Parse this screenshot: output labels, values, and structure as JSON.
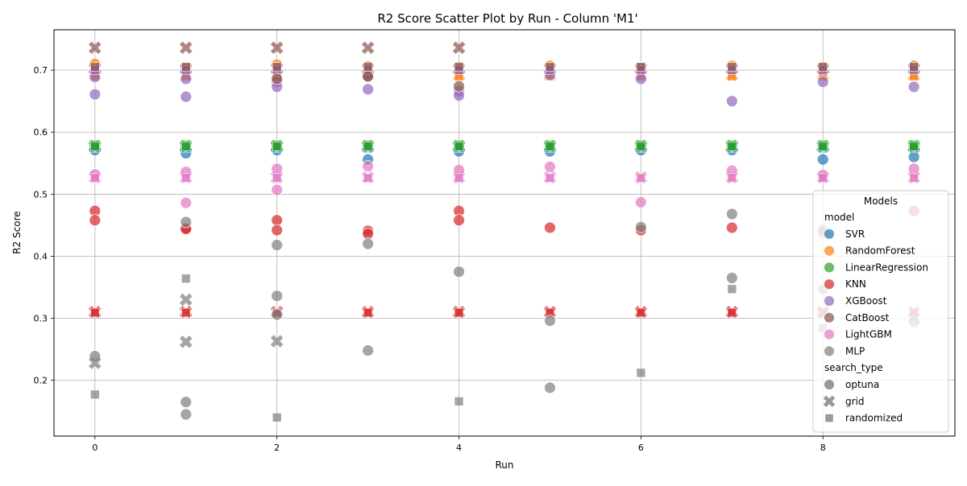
{
  "colors": {
    "SVR": "#1f77b4",
    "RandomForest": "#ff7f0e",
    "LinearRegression": "#2ca02c",
    "KNN": "#d62728",
    "XGBoost": "#9467bd",
    "CatBoost": "#8c564b",
    "LightGBM": "#e377c2",
    "MLP": "#7f7f7f"
  },
  "chart_data": {
    "type": "scatter",
    "title": "R2 Score Scatter Plot by Run - Column 'M1'",
    "xlabel": "Run",
    "ylabel": "R2 Score",
    "xlim": [
      -0.45,
      9.45
    ],
    "ylim": [
      0.11,
      0.765
    ],
    "xticks": [
      0,
      2,
      4,
      6,
      8
    ],
    "yticks": [
      0.2,
      0.3,
      0.4,
      0.5,
      0.6,
      0.7
    ],
    "grid": true,
    "legend": {
      "position": "right",
      "title": "Models",
      "group_titles": {
        "model": "model",
        "search_type": "search_type"
      },
      "models": [
        "SVR",
        "RandomForest",
        "LinearRegression",
        "KNN",
        "XGBoost",
        "CatBoost",
        "LightGBM",
        "MLP"
      ],
      "search_types": [
        "optuna",
        "grid",
        "randomized"
      ]
    },
    "series": [
      {
        "model": "SVR",
        "search": "optuna",
        "points": [
          [
            0,
            0.571
          ],
          [
            1,
            0.566
          ],
          [
            2,
            0.571
          ],
          [
            3,
            0.556
          ],
          [
            4,
            0.569
          ],
          [
            5,
            0.569
          ],
          [
            6,
            0.571
          ],
          [
            7,
            0.571
          ],
          [
            8,
            0.556
          ],
          [
            9,
            0.56
          ]
        ]
      },
      {
        "model": "SVR",
        "search": "grid",
        "points": [
          [
            0,
            0.576
          ],
          [
            1,
            0.576
          ],
          [
            2,
            0.576
          ],
          [
            3,
            0.576
          ],
          [
            4,
            0.576
          ],
          [
            5,
            0.576
          ],
          [
            6,
            0.576
          ],
          [
            7,
            0.576
          ],
          [
            8,
            0.576
          ],
          [
            9,
            0.576
          ]
        ]
      },
      {
        "model": "SVR",
        "search": "randomized",
        "points": [
          [
            0,
            0.574
          ],
          [
            1,
            0.574
          ],
          [
            2,
            0.574
          ],
          [
            3,
            0.574
          ],
          [
            4,
            0.574
          ],
          [
            5,
            0.574
          ],
          [
            6,
            0.574
          ],
          [
            7,
            0.574
          ],
          [
            8,
            0.574
          ],
          [
            9,
            0.574
          ]
        ]
      },
      {
        "model": "RandomForest",
        "search": "optuna",
        "points": [
          [
            0,
            0.71
          ],
          [
            1,
            0.704
          ],
          [
            2,
            0.709
          ],
          [
            3,
            0.706
          ],
          [
            4,
            0.705
          ],
          [
            5,
            0.707
          ],
          [
            6,
            0.704
          ],
          [
            7,
            0.707
          ],
          [
            8,
            0.705
          ],
          [
            9,
            0.707
          ]
        ]
      },
      {
        "model": "RandomForest",
        "search": "grid",
        "points": [
          [
            0,
            0.692
          ],
          [
            1,
            0.692
          ],
          [
            2,
            0.692
          ],
          [
            3,
            0.692
          ],
          [
            4,
            0.692
          ],
          [
            5,
            0.692
          ],
          [
            6,
            0.692
          ],
          [
            7,
            0.692
          ],
          [
            8,
            0.692
          ],
          [
            9,
            0.692
          ]
        ]
      },
      {
        "model": "RandomForest",
        "search": "randomized",
        "points": [
          [
            0,
            0.69
          ],
          [
            1,
            0.69
          ],
          [
            2,
            0.69
          ],
          [
            3,
            0.69
          ],
          [
            4,
            0.69
          ],
          [
            5,
            0.69
          ],
          [
            6,
            0.69
          ],
          [
            7,
            0.69
          ],
          [
            8,
            0.69
          ],
          [
            9,
            0.69
          ]
        ]
      },
      {
        "model": "LinearRegression",
        "search": "optuna",
        "points": [
          [
            0,
            0.578
          ],
          [
            1,
            0.578
          ],
          [
            2,
            0.578
          ],
          [
            3,
            0.578
          ],
          [
            4,
            0.578
          ],
          [
            5,
            0.578
          ],
          [
            6,
            0.578
          ],
          [
            7,
            0.578
          ],
          [
            8,
            0.578
          ],
          [
            9,
            0.578
          ]
        ]
      },
      {
        "model": "LinearRegression",
        "search": "grid",
        "points": [
          [
            0,
            0.578
          ],
          [
            1,
            0.578
          ],
          [
            2,
            0.578
          ],
          [
            3,
            0.578
          ],
          [
            4,
            0.578
          ],
          [
            5,
            0.578
          ],
          [
            6,
            0.578
          ],
          [
            7,
            0.578
          ],
          [
            8,
            0.578
          ],
          [
            9,
            0.578
          ]
        ]
      },
      {
        "model": "LinearRegression",
        "search": "randomized",
        "points": [
          [
            0,
            0.577
          ],
          [
            1,
            0.577
          ],
          [
            2,
            0.577
          ],
          [
            3,
            0.577
          ],
          [
            4,
            0.577
          ],
          [
            5,
            0.577
          ],
          [
            6,
            0.577
          ],
          [
            7,
            0.577
          ],
          [
            8,
            0.577
          ],
          [
            9,
            0.577
          ]
        ]
      },
      {
        "model": "KNN",
        "search": "optuna",
        "points": [
          [
            0,
            0.473
          ],
          [
            0,
            0.458
          ],
          [
            1,
            0.445
          ],
          [
            1,
            0.444
          ],
          [
            2,
            0.458
          ],
          [
            2,
            0.442
          ],
          [
            3,
            0.441
          ],
          [
            3,
            0.436
          ],
          [
            4,
            0.473
          ],
          [
            4,
            0.458
          ],
          [
            5,
            0.446
          ],
          [
            6,
            0.442
          ],
          [
            7,
            0.446
          ],
          [
            8,
            0.438
          ],
          [
            9,
            0.473
          ]
        ]
      },
      {
        "model": "KNN",
        "search": "grid",
        "points": [
          [
            0,
            0.31
          ],
          [
            1,
            0.31
          ],
          [
            2,
            0.31
          ],
          [
            3,
            0.31
          ],
          [
            4,
            0.31
          ],
          [
            5,
            0.31
          ],
          [
            6,
            0.31
          ],
          [
            7,
            0.31
          ],
          [
            8,
            0.31
          ],
          [
            9,
            0.31
          ]
        ]
      },
      {
        "model": "KNN",
        "search": "randomized",
        "points": [
          [
            0,
            0.309
          ],
          [
            1,
            0.309
          ],
          [
            2,
            0.309
          ],
          [
            3,
            0.309
          ],
          [
            4,
            0.309
          ],
          [
            5,
            0.309
          ],
          [
            6,
            0.309
          ],
          [
            7,
            0.309
          ],
          [
            8,
            0.309
          ],
          [
            9,
            0.309
          ]
        ]
      },
      {
        "model": "XGBoost",
        "search": "optuna",
        "points": [
          [
            0,
            0.689
          ],
          [
            0,
            0.661
          ],
          [
            1,
            0.686
          ],
          [
            1,
            0.657
          ],
          [
            2,
            0.681
          ],
          [
            2,
            0.673
          ],
          [
            3,
            0.689
          ],
          [
            3,
            0.669
          ],
          [
            4,
            0.666
          ],
          [
            4,
            0.659
          ],
          [
            5,
            0.692
          ],
          [
            6,
            0.686
          ],
          [
            7,
            0.65
          ],
          [
            8,
            0.681
          ],
          [
            9,
            0.673
          ]
        ]
      },
      {
        "model": "XGBoost",
        "search": "grid",
        "points": [
          [
            0,
            0.702
          ],
          [
            1,
            0.702
          ],
          [
            2,
            0.702
          ],
          [
            3,
            0.702
          ],
          [
            4,
            0.702
          ],
          [
            5,
            0.702
          ],
          [
            6,
            0.702
          ],
          [
            7,
            0.702
          ],
          [
            8,
            0.702
          ],
          [
            9,
            0.702
          ]
        ]
      },
      {
        "model": "XGBoost",
        "search": "randomized",
        "points": [
          [
            0,
            0.7
          ],
          [
            1,
            0.7
          ],
          [
            2,
            0.7
          ],
          [
            3,
            0.7
          ],
          [
            4,
            0.7
          ],
          [
            5,
            0.7
          ],
          [
            6,
            0.7
          ],
          [
            7,
            0.7
          ],
          [
            8,
            0.7
          ],
          [
            9,
            0.7
          ]
        ]
      },
      {
        "model": "CatBoost",
        "search": "optuna",
        "points": [
          [
            2,
            0.686
          ],
          [
            3,
            0.69
          ],
          [
            4,
            0.674
          ]
        ]
      },
      {
        "model": "CatBoost",
        "search": "grid",
        "points": [
          [
            0,
            0.736
          ],
          [
            1,
            0.736
          ],
          [
            2,
            0.736
          ],
          [
            3,
            0.736
          ],
          [
            4,
            0.736
          ]
        ]
      },
      {
        "model": "CatBoost",
        "search": "randomized",
        "points": [
          [
            0,
            0.705
          ],
          [
            1,
            0.705
          ],
          [
            2,
            0.705
          ],
          [
            3,
            0.705
          ],
          [
            4,
            0.705
          ],
          [
            5,
            0.705
          ],
          [
            6,
            0.705
          ],
          [
            7,
            0.705
          ],
          [
            8,
            0.705
          ],
          [
            9,
            0.705
          ]
        ]
      },
      {
        "model": "LightGBM",
        "search": "optuna",
        "points": [
          [
            0,
            0.532
          ],
          [
            1,
            0.536
          ],
          [
            1,
            0.486
          ],
          [
            2,
            0.541
          ],
          [
            2,
            0.507
          ],
          [
            3,
            0.545
          ],
          [
            4,
            0.539
          ],
          [
            5,
            0.544
          ],
          [
            6,
            0.487
          ],
          [
            7,
            0.538
          ],
          [
            8,
            0.531
          ],
          [
            9,
            0.541
          ]
        ]
      },
      {
        "model": "LightGBM",
        "search": "grid",
        "points": [
          [
            0,
            0.527
          ],
          [
            1,
            0.527
          ],
          [
            2,
            0.527
          ],
          [
            3,
            0.527
          ],
          [
            4,
            0.527
          ],
          [
            5,
            0.527
          ],
          [
            6,
            0.527
          ],
          [
            7,
            0.527
          ],
          [
            8,
            0.527
          ],
          [
            9,
            0.527
          ]
        ]
      },
      {
        "model": "LightGBM",
        "search": "randomized",
        "points": [
          [
            0,
            0.526
          ],
          [
            1,
            0.526
          ],
          [
            2,
            0.526
          ],
          [
            3,
            0.526
          ],
          [
            4,
            0.526
          ],
          [
            5,
            0.526
          ],
          [
            6,
            0.526
          ],
          [
            7,
            0.526
          ],
          [
            8,
            0.526
          ],
          [
            9,
            0.526
          ]
        ]
      },
      {
        "model": "MLP",
        "search": "optuna",
        "points": [
          [
            0,
            0.239
          ],
          [
            1,
            0.455
          ],
          [
            1,
            0.165
          ],
          [
            1,
            0.145
          ],
          [
            2,
            0.418
          ],
          [
            2,
            0.336
          ],
          [
            2,
            0.306
          ],
          [
            3,
            0.42
          ],
          [
            3,
            0.248
          ],
          [
            4,
            0.375
          ],
          [
            5,
            0.296
          ],
          [
            5,
            0.188
          ],
          [
            6,
            0.447
          ],
          [
            7,
            0.468
          ],
          [
            7,
            0.365
          ],
          [
            8,
            0.442
          ],
          [
            8,
            0.347
          ],
          [
            9,
            0.294
          ]
        ]
      },
      {
        "model": "MLP",
        "search": "grid",
        "points": [
          [
            0,
            0.228
          ],
          [
            1,
            0.33
          ],
          [
            1,
            0.262
          ],
          [
            2,
            0.263
          ],
          [
            8,
            0.308
          ],
          [
            9,
            0.3
          ]
        ]
      },
      {
        "model": "MLP",
        "search": "randomized",
        "points": [
          [
            0,
            0.177
          ],
          [
            1,
            0.364
          ],
          [
            2,
            0.14
          ],
          [
            4,
            0.166
          ],
          [
            6,
            0.212
          ],
          [
            7,
            0.347
          ],
          [
            8,
            0.284
          ]
        ]
      }
    ]
  }
}
